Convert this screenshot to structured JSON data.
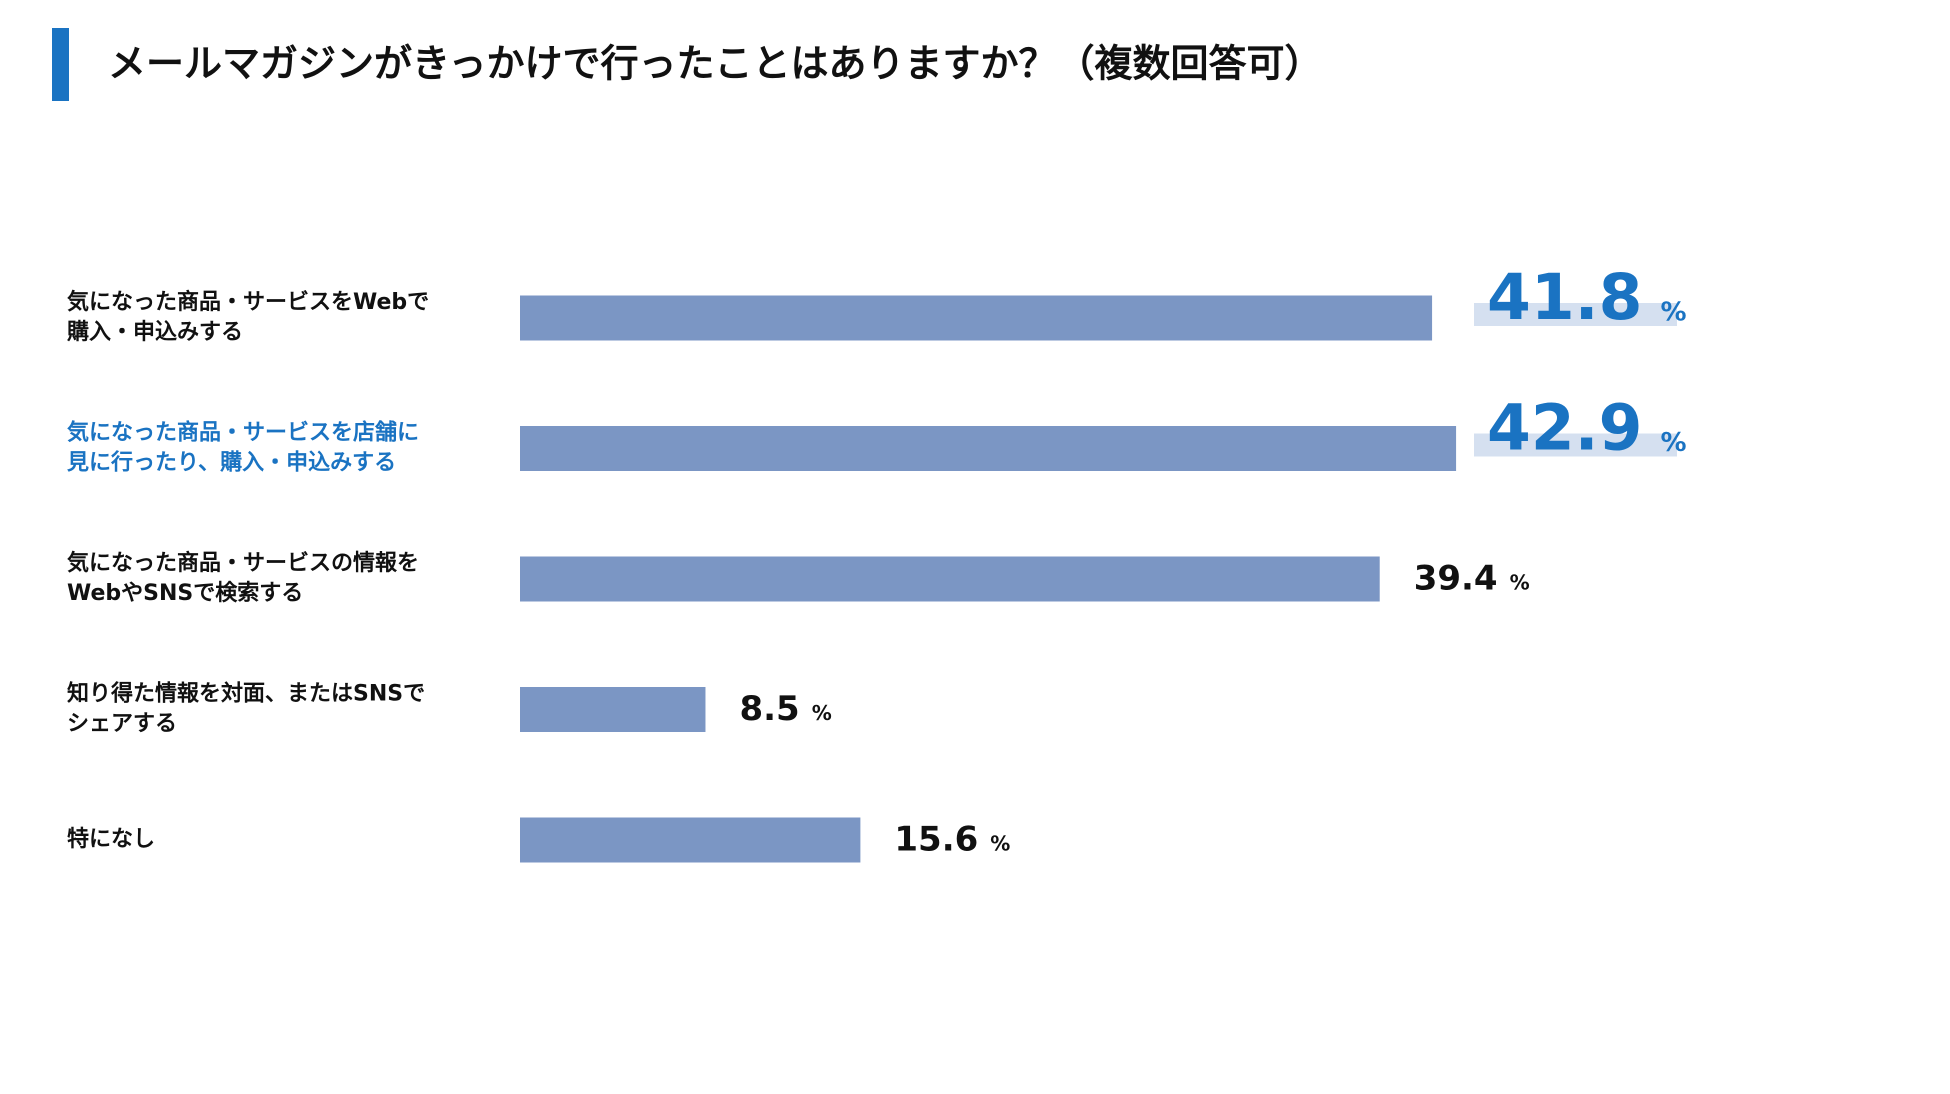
{
  "chart_data": {
    "type": "bar",
    "orientation": "horizontal",
    "title": "メールマガジンがきっかけで行ったことはありますか？（複数回答可）",
    "categories": [
      [
        "気になった商品・サービスをWebで",
        "購入・申込みする"
      ],
      [
        "気になった商品・サービスを店舗に",
        "見に行ったり、購入・申込みする"
      ],
      [
        "気になった商品・サービスの情報を",
        "WebやSNSで検索する"
      ],
      [
        "知り得た情報を対面、またはSNSで",
        "シェアする"
      ],
      [
        "特になし"
      ]
    ],
    "values": [
      41.8,
      42.9,
      39.4,
      8.5,
      15.6
    ],
    "unit": "%",
    "color": "#7b96c4",
    "xlim": [
      0,
      50
    ],
    "highlight": [
      0,
      1
    ],
    "highlight_category": [
      1
    ],
    "highlight_color": "#1a73c2",
    "highlight_band_color": "#d5e0f0",
    "accent_color": "#1a73c2"
  }
}
